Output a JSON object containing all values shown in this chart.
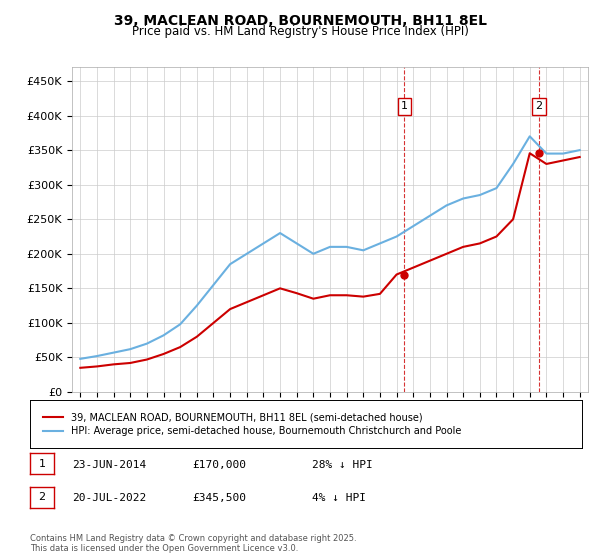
{
  "title": "39, MACLEAN ROAD, BOURNEMOUTH, BH11 8EL",
  "subtitle": "Price paid vs. HM Land Registry's House Price Index (HPI)",
  "legend_line1": "39, MACLEAN ROAD, BOURNEMOUTH, BH11 8EL (semi-detached house)",
  "legend_line2": "HPI: Average price, semi-detached house, Bournemouth Christchurch and Poole",
  "footnote": "Contains HM Land Registry data © Crown copyright and database right 2025.\nThis data is licensed under the Open Government Licence v3.0.",
  "transaction1_label": "1",
  "transaction1_date": "23-JUN-2014",
  "transaction1_price": "£170,000",
  "transaction1_hpi": "28% ↓ HPI",
  "transaction2_label": "2",
  "transaction2_date": "20-JUL-2022",
  "transaction2_price": "£345,500",
  "transaction2_hpi": "4% ↓ HPI",
  "hpi_color": "#6ab0e0",
  "price_color": "#cc0000",
  "dashed_color": "#cc0000",
  "ylim_min": 0,
  "ylim_max": 470000,
  "yticks": [
    0,
    50000,
    100000,
    150000,
    200000,
    250000,
    300000,
    350000,
    400000,
    450000
  ],
  "ytick_labels": [
    "£0",
    "£50K",
    "£100K",
    "£150K",
    "£200K",
    "£250K",
    "£300K",
    "£350K",
    "£400K",
    "£450K"
  ],
  "hpi_x": [
    1995,
    1996,
    1997,
    1998,
    1999,
    2000,
    2001,
    2002,
    2003,
    2004,
    2005,
    2006,
    2007,
    2008,
    2009,
    2010,
    2011,
    2012,
    2013,
    2014,
    2015,
    2016,
    2017,
    2018,
    2019,
    2020,
    2021,
    2022,
    2023,
    2024,
    2025
  ],
  "hpi_y": [
    48000,
    52000,
    57000,
    62000,
    70000,
    82000,
    98000,
    125000,
    155000,
    185000,
    200000,
    215000,
    230000,
    215000,
    200000,
    210000,
    210000,
    205000,
    215000,
    225000,
    240000,
    255000,
    270000,
    280000,
    285000,
    295000,
    330000,
    370000,
    345000,
    345000,
    350000
  ],
  "price_x": [
    1995,
    1996,
    1997,
    1998,
    1999,
    2000,
    2001,
    2002,
    2003,
    2004,
    2005,
    2006,
    2007,
    2008,
    2009,
    2010,
    2011,
    2012,
    2013,
    2014,
    2015,
    2016,
    2017,
    2018,
    2019,
    2020,
    2021,
    2022,
    2023,
    2024,
    2025
  ],
  "price_y": [
    35000,
    37000,
    40000,
    42000,
    47000,
    55000,
    65000,
    80000,
    100000,
    120000,
    130000,
    140000,
    150000,
    143000,
    135000,
    140000,
    140000,
    138000,
    142000,
    170000,
    180000,
    190000,
    200000,
    210000,
    215000,
    225000,
    250000,
    345500,
    330000,
    335000,
    340000
  ],
  "marker1_x": 2014.47,
  "marker1_y": 170000,
  "marker2_x": 2022.55,
  "marker2_y": 345500,
  "vline1_x": 2014.47,
  "vline2_x": 2022.55,
  "xlim_min": 1994.5,
  "xlim_max": 2025.5,
  "background_color": "#ffffff",
  "plot_bg_color": "#ffffff",
  "grid_color": "#cccccc"
}
